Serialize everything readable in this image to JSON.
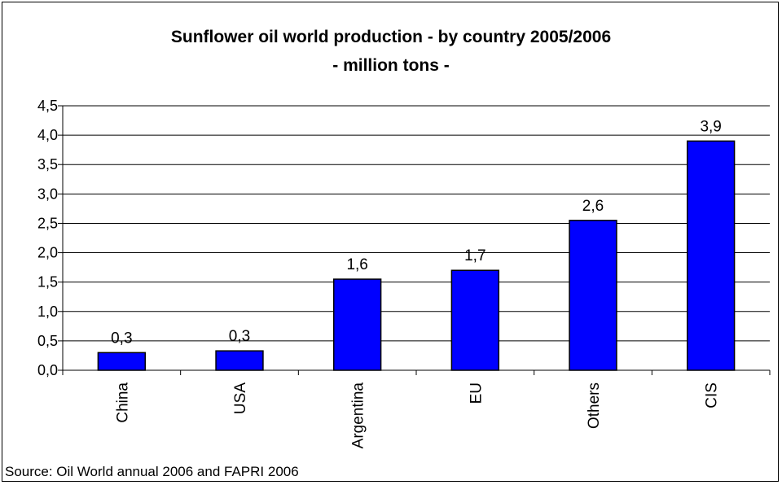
{
  "chart_data": {
    "type": "bar",
    "title": "Sunflower oil world production - by country 2005/2006",
    "subtitle": "- million tons -",
    "categories": [
      "China",
      "USA",
      "Argentina",
      "EU",
      "Others",
      "CIS"
    ],
    "values": [
      0.3,
      0.33,
      1.55,
      1.7,
      2.55,
      3.9
    ],
    "data_labels": [
      "0,3",
      "0,3",
      "1,6",
      "1,7",
      "2,6",
      "3,9"
    ],
    "ylim": [
      0,
      4.5
    ],
    "yticks": [
      0,
      0.5,
      1,
      1.5,
      2,
      2.5,
      3,
      3.5,
      4,
      4.5
    ],
    "ytick_labels": [
      "0,0",
      "0,5",
      "1,0",
      "1,5",
      "2,0",
      "2,5",
      "3,0",
      "3,5",
      "4,0",
      "4,5"
    ],
    "grid": true,
    "bar_color": "#0000FF",
    "source": "Source: Oil World annual 2006 and FAPRI 2006"
  }
}
